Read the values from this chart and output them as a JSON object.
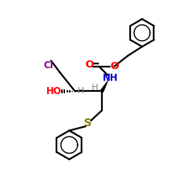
{
  "bg_color": "#ffffff",
  "atom_colors": {
    "C": "#000000",
    "H": "#808080",
    "N": "#0000cd",
    "O": "#ff0000",
    "S": "#808000",
    "Cl": "#8b008b"
  },
  "line_color": "#000000",
  "line_width": 1.6,
  "font_size": 8.5
}
